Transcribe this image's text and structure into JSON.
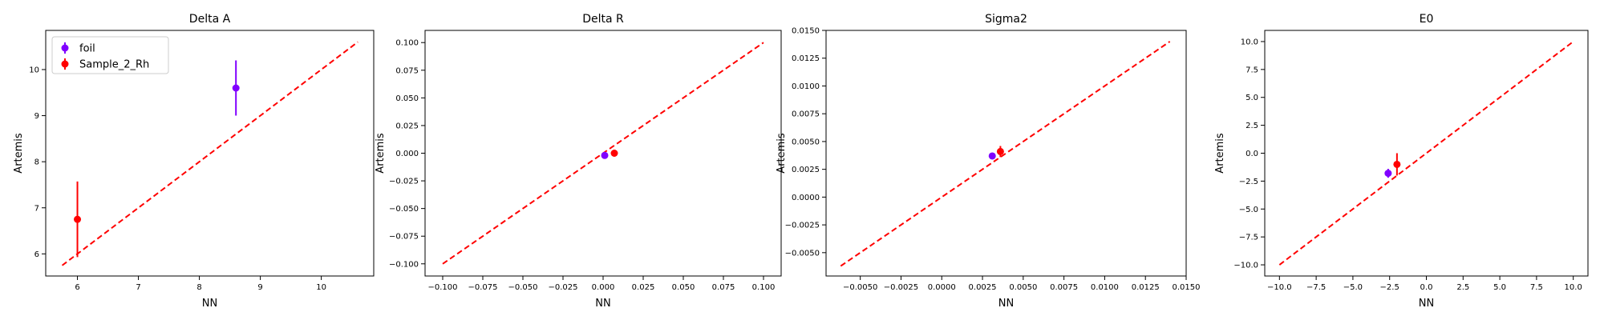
{
  "chart_data": [
    {
      "type": "scatter",
      "title": "Delta A",
      "xlabel": "NN",
      "ylabel": "Artemis",
      "xlim": [
        5.48,
        10.86
      ],
      "ylim": [
        5.52,
        10.85
      ],
      "xticks": [
        6,
        7,
        8,
        9,
        10
      ],
      "yticks": [
        6,
        7,
        8,
        9,
        10
      ],
      "tick_labels_x": [
        "6",
        "7",
        "8",
        "9",
        "10"
      ],
      "tick_labels_y": [
        "6",
        "7",
        "8",
        "9",
        "10"
      ],
      "identity_line": {
        "from": [
          5.75,
          5.75
        ],
        "to": [
          10.6,
          10.6
        ],
        "color": "#ff0000"
      },
      "legend": {
        "placement": "top-left",
        "entries": [
          "foil",
          "Sample_2_Rh"
        ]
      },
      "series": [
        {
          "name": "foil",
          "color": "#8000ff",
          "points": [
            {
              "x": 8.6,
              "y": 9.6,
              "yerr": 0.6
            }
          ]
        },
        {
          "name": "Sample_2_Rh",
          "color": "#ff0000",
          "points": [
            {
              "x": 6.0,
              "y": 6.75,
              "yerr": 0.82
            }
          ]
        }
      ]
    },
    {
      "type": "scatter",
      "title": "Delta R",
      "xlabel": "NN",
      "ylabel": "Artemis",
      "xlim": [
        -0.111,
        0.111
      ],
      "ylim": [
        -0.111,
        0.111
      ],
      "xticks": [
        -0.1,
        -0.075,
        -0.05,
        -0.025,
        0.0,
        0.025,
        0.05,
        0.075,
        0.1
      ],
      "yticks": [
        -0.1,
        -0.075,
        -0.05,
        -0.025,
        0.0,
        0.025,
        0.05,
        0.075,
        0.1
      ],
      "tick_labels_x": [
        "−0.100",
        "−0.075",
        "−0.050",
        "−0.025",
        "0.000",
        "0.025",
        "0.050",
        "0.075",
        "0.100"
      ],
      "tick_labels_y": [
        "−0.100",
        "−0.075",
        "−0.050",
        "−0.025",
        "0.000",
        "0.025",
        "0.050",
        "0.075",
        "0.100"
      ],
      "identity_line": {
        "from": [
          -0.1,
          -0.1
        ],
        "to": [
          0.1,
          0.1
        ],
        "color": "#ff0000"
      },
      "series": [
        {
          "name": "foil",
          "color": "#8000ff",
          "points": [
            {
              "x": 0.001,
              "y": -0.002,
              "yerr": 0.002
            }
          ]
        },
        {
          "name": "Sample_2_Rh",
          "color": "#ff0000",
          "points": [
            {
              "x": 0.007,
              "y": 0.0,
              "yerr": 0.003
            }
          ]
        }
      ]
    },
    {
      "type": "scatter",
      "title": "Sigma2",
      "xlabel": "NN",
      "ylabel": "Artemis",
      "xlim": [
        -0.0071,
        0.015
      ],
      "ylim": [
        -0.0071,
        0.015
      ],
      "xticks": [
        -0.005,
        -0.0025,
        0.0,
        0.0025,
        0.005,
        0.0075,
        0.01,
        0.0125,
        0.015
      ],
      "yticks": [
        -0.005,
        -0.0025,
        0.0,
        0.0025,
        0.005,
        0.0075,
        0.01,
        0.0125,
        0.015
      ],
      "tick_labels_x": [
        "−0.0050",
        "−0.0025",
        "0.0000",
        "0.0025",
        "0.0050",
        "0.0075",
        "0.0100",
        "0.0125",
        "0.0150"
      ],
      "tick_labels_y": [
        "−0.0050",
        "−0.0025",
        "0.0000",
        "0.0025",
        "0.0050",
        "0.0075",
        "0.0100",
        "0.0125",
        "0.0150"
      ],
      "identity_line": {
        "from": [
          -0.0062,
          -0.0062
        ],
        "to": [
          0.014,
          0.014
        ],
        "color": "#ff0000"
      },
      "series": [
        {
          "name": "foil",
          "color": "#8000ff",
          "points": [
            {
              "x": 0.0031,
              "y": 0.0037,
              "yerr": 0.0002
            }
          ]
        },
        {
          "name": "Sample_2_Rh",
          "color": "#ff0000",
          "points": [
            {
              "x": 0.0036,
              "y": 0.0041,
              "yerr": 0.0005
            }
          ]
        }
      ]
    },
    {
      "type": "scatter",
      "title": "E0",
      "xlabel": "NN",
      "ylabel": "Artemis",
      "xlim": [
        -11.0,
        11.0
      ],
      "ylim": [
        -11.0,
        11.0
      ],
      "xticks": [
        -10,
        -7.5,
        -5,
        -2.5,
        0,
        2.5,
        5,
        7.5,
        10
      ],
      "yticks": [
        -10,
        -7.5,
        -5,
        -2.5,
        0,
        2.5,
        5,
        7.5,
        10
      ],
      "tick_labels_x": [
        "−10.0",
        "−7.5",
        "−5.0",
        "−2.5",
        "0.0",
        "2.5",
        "5.0",
        "7.5",
        "10.0"
      ],
      "tick_labels_y": [
        "−10.0",
        "−7.5",
        "−5.0",
        "−2.5",
        "0.0",
        "2.5",
        "5.0",
        "7.5",
        "10.0"
      ],
      "identity_line": {
        "from": [
          -10,
          -10
        ],
        "to": [
          10,
          10
        ],
        "color": "#ff0000"
      },
      "series": [
        {
          "name": "foil",
          "color": "#8000ff",
          "points": [
            {
              "x": -2.6,
              "y": -1.8,
              "yerr": 0.4
            }
          ]
        },
        {
          "name": "Sample_2_Rh",
          "color": "#ff0000",
          "points": [
            {
              "x": -2.0,
              "y": -1.0,
              "yerr": 1.0
            }
          ]
        }
      ]
    }
  ]
}
